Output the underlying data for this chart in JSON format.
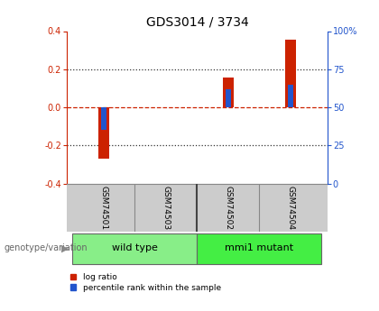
{
  "title": "GDS3014 / 3734",
  "samples": [
    "GSM74501",
    "GSM74503",
    "GSM74502",
    "GSM74504"
  ],
  "log_ratios": [
    -0.27,
    0.0,
    0.155,
    0.355
  ],
  "percentile_ranks_raw": [
    35,
    50,
    62,
    65
  ],
  "groups": [
    {
      "name": "wild type",
      "indices": [
        0,
        1
      ],
      "color": "#88ee88"
    },
    {
      "name": "mmi1 mutant",
      "indices": [
        2,
        3
      ],
      "color": "#44ee44"
    }
  ],
  "ylim": [
    -0.4,
    0.4
  ],
  "yticks_left": [
    -0.4,
    -0.2,
    0.0,
    0.2,
    0.4
  ],
  "yticks_right": [
    0,
    25,
    50,
    75,
    100
  ],
  "bar_width": 0.18,
  "blue_bar_width": 0.08,
  "log_ratio_color": "#cc2200",
  "percentile_color": "#2255cc",
  "bg_color": "#ffffff",
  "plot_bg_color": "#ffffff",
  "sample_panel_color": "#cccccc",
  "label_genotype": "genotype/variation",
  "legend_log": "log ratio",
  "legend_pct": "percentile rank within the sample",
  "dotted_line_color": "#333333",
  "zero_line_color": "#cc2200",
  "title_fontsize": 10,
  "tick_fontsize": 7,
  "sample_fontsize": 6.5,
  "group_fontsize": 8
}
